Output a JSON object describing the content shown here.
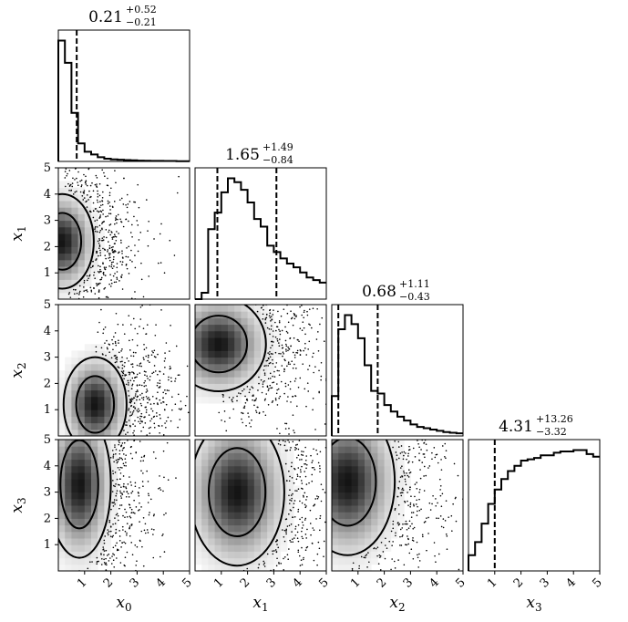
{
  "chart_data": {
    "type": "corner",
    "variables": [
      {
        "id": "x0",
        "label": "x",
        "sub": "0"
      },
      {
        "id": "x1",
        "label": "x",
        "sub": "1"
      },
      {
        "id": "x2",
        "label": "x",
        "sub": "2"
      },
      {
        "id": "x3",
        "label": "x",
        "sub": "3"
      }
    ],
    "range": [
      0,
      5
    ],
    "ticks": [
      1,
      2,
      3,
      4,
      5
    ],
    "tick_labels": [
      "1",
      "2",
      "3",
      "4",
      "5"
    ],
    "titles": [
      {
        "median": "0.21",
        "plus": "+0.52",
        "minus": "−0.21"
      },
      {
        "median": "1.65",
        "plus": "+1.49",
        "minus": "−0.84"
      },
      {
        "median": "0.68",
        "plus": "+1.11",
        "minus": "−0.43"
      },
      {
        "median": "4.31",
        "plus": "+13.26",
        "minus": "−3.32"
      }
    ],
    "quantile_lines": [
      [
        0.7
      ],
      [
        0.85,
        3.1
      ],
      [
        0.25,
        1.75
      ],
      [
        1.0
      ]
    ],
    "histograms": [
      {
        "edges_step": 0.25,
        "values": [
          0.87,
          0.71,
          0.35,
          0.13,
          0.07,
          0.05,
          0.03,
          0.02,
          0.015,
          0.012,
          0.01,
          0.008,
          0.006,
          0.005,
          0.004,
          0.004,
          0.003,
          0.003,
          0.002,
          0.002
        ]
      },
      {
        "edges_step": 0.25,
        "values": [
          0.0,
          0.05,
          0.55,
          0.68,
          0.84,
          0.95,
          0.92,
          0.86,
          0.76,
          0.63,
          0.57,
          0.42,
          0.37,
          0.32,
          0.28,
          0.25,
          0.21,
          0.17,
          0.15,
          0.13
        ]
      },
      {
        "edges_step": 0.25,
        "values": [
          0.31,
          0.83,
          0.94,
          0.87,
          0.76,
          0.55,
          0.35,
          0.33,
          0.24,
          0.19,
          0.15,
          0.12,
          0.09,
          0.07,
          0.06,
          0.05,
          0.04,
          0.03,
          0.025,
          0.02
        ]
      },
      {
        "edges_step": 0.25,
        "values": [
          0.12,
          0.22,
          0.36,
          0.51,
          0.62,
          0.7,
          0.76,
          0.8,
          0.84,
          0.85,
          0.86,
          0.88,
          0.88,
          0.9,
          0.91,
          0.91,
          0.92,
          0.92,
          0.89,
          0.87
        ]
      }
    ]
  }
}
